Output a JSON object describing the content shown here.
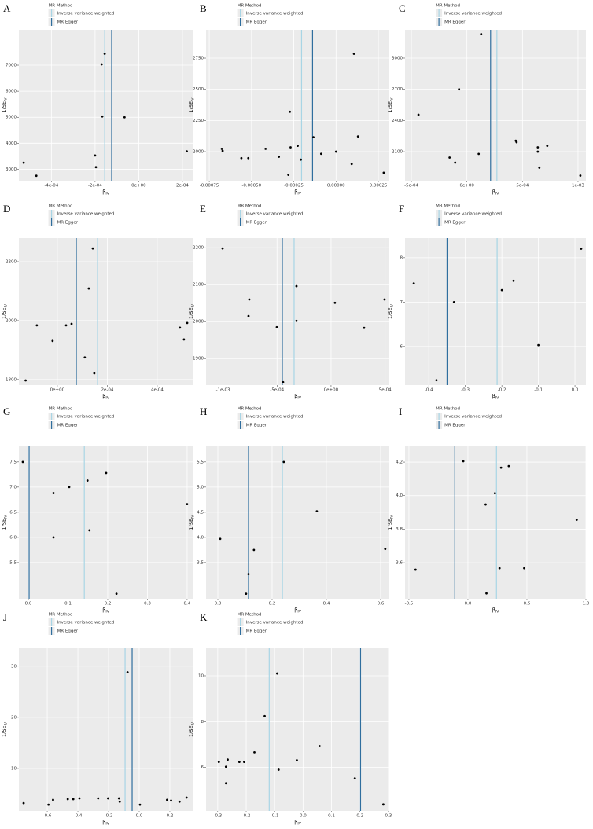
{
  "chart_data": [
    {
      "type": "scatter",
      "panel": "A",
      "legend_title": "MR Method",
      "xlabel": "β",
      "xlabel_sub": "IV",
      "ylabel": "1/SE",
      "ylabel_sub": "IV",
      "point_color": "#000000",
      "grid": true,
      "x": [
        -0.000527,
        -0.000469,
        -0.0002,
        -0.000196,
        -0.00017,
        -0.000156,
        -0.000167,
        -6.5e-05,
        0.00022
      ],
      "y": [
        3250,
        2750,
        3530,
        3080,
        7030,
        7440,
        5030,
        5000,
        3690
      ],
      "lines": [
        {
          "name": "Inverse variance weighted",
          "color": "#a8d5e5",
          "value": -0.000156
        },
        {
          "name": "MR Egger",
          "color": "#2f6e9e",
          "value": -0.000124
        }
      ],
      "xlim": [
        -0.000549,
        0.000247
      ],
      "ylim": [
        2560,
        8360
      ],
      "xticks": [
        {
          "value": -0.0004,
          "label": "-4e-04"
        },
        {
          "value": -0.0002,
          "label": "-2e-04"
        },
        {
          "value": 0,
          "label": "0e+00"
        },
        {
          "value": 0.0002,
          "label": "2e-04"
        }
      ],
      "yticks": [
        3000,
        4000,
        5000,
        6000,
        7000
      ]
    },
    {
      "type": "scatter",
      "panel": "B",
      "legend_title": "MR Method",
      "xlabel": "β",
      "xlabel_sub": "IV",
      "ylabel": "1/SE",
      "ylabel_sub": "IV",
      "point_color": "#000000",
      "grid": true,
      "x": [
        -0.000676,
        -0.000671,
        -0.00056,
        -0.000519,
        -0.000417,
        -0.000338,
        -0.000273,
        -0.000269,
        -0.000282,
        -0.000227,
        -0.000208,
        -0.000134,
        -8.8e-05,
        0,
        9.26e-05,
        0.000106,
        0.00013,
        0.000282
      ],
      "y": [
        2023,
        2006,
        1948,
        1948,
        2023,
        1959,
        2320,
        2035,
        1814,
        2047,
        1936,
        2116,
        1983,
        2000,
        1901,
        2785,
        2122,
        1831
      ],
      "lines": [
        {
          "name": "Inverse variance weighted",
          "color": "#a8d5e5",
          "value": -0.000204
        },
        {
          "name": "MR Egger",
          "color": "#2f6e9e",
          "value": -0.000139
        }
      ],
      "xlim": [
        -0.000769,
        0.000315
      ],
      "ylim": [
        1767,
        2977
      ],
      "xticks": [
        -0.00075,
        {
          "value": -0.0005,
          "label": "-0.00050"
        },
        -0.00025,
        {
          "value": 0,
          "label": "0.00000"
        },
        0.00025
      ],
      "yticks": [
        2000,
        2250,
        2500,
        2750
      ]
    },
    {
      "type": "scatter",
      "panel": "C",
      "legend_title": "MR Method",
      "xlabel": "β",
      "xlabel_sub": "IV",
      "ylabel": "1/SE",
      "ylabel_sub": "IV",
      "point_color": "#000000",
      "grid": true,
      "x": [
        -0.000436,
        -0.000156,
        -0.000106,
        -7.1e-05,
        0.000106,
        0.000128,
        0.00044,
        0.000447,
        0.000638,
        0.000638,
        0.000723,
        0.000652,
        0.001021
      ],
      "y": [
        2456,
        2044,
        1995,
        2700,
        2079,
        3230,
        2205,
        2191,
        2142,
        2100,
        2156,
        1947,
        1870
      ],
      "lines": [
        {
          "name": "Inverse variance weighted",
          "color": "#a8d5e5",
          "value": 0.00027
        },
        {
          "name": "MR Egger",
          "color": "#2f6e9e",
          "value": 0.000213
        }
      ],
      "xlim": [
        -0.000557,
        0.001071
      ],
      "ylim": [
        1821,
        3272
      ],
      "xticks": [
        {
          "value": -0.0005,
          "label": "-5e-04"
        },
        {
          "value": 0,
          "label": "0e+00"
        },
        {
          "value": 0.0005,
          "label": "5e-04"
        },
        {
          "value": 0.001,
          "label": "1e-03"
        }
      ],
      "yticks": [
        2100,
        2400,
        2700,
        3000
      ]
    },
    {
      "type": "scatter",
      "panel": "D",
      "legend_title": "MR Method",
      "xlabel": "β",
      "xlabel_sub": "IV",
      "ylabel": "1/SE",
      "ylabel_sub": "IV",
      "point_color": "#000000",
      "grid": true,
      "x": [
        -0.000127,
        -8.2e-05,
        -1.9e-05,
        3.5e-05,
        5.7e-05,
        0.00011,
        0.000126,
        0.000142,
        0.000148,
        0.000491,
        0.000507,
        0.00052
      ],
      "y": [
        1797,
        1984,
        1931,
        1984,
        1989,
        1875,
        2109,
        2245,
        1821,
        1976,
        1936,
        1992
      ],
      "lines": [
        {
          "name": "Inverse variance weighted",
          "color": "#a8d5e5",
          "value": 0.000161
        },
        {
          "name": "MR Egger",
          "color": "#2f6e9e",
          "value": 7.6e-05
        }
      ],
      "xlim": [
        -0.000154,
        0.000542
      ],
      "ylim": [
        1781,
        2280
      ],
      "xticks": [
        {
          "value": 0,
          "label": "0e+00"
        },
        {
          "value": 0.0002,
          "label": "2e-04"
        },
        {
          "value": 0.0004,
          "label": "4e-04"
        }
      ],
      "yticks": [
        1800,
        2000,
        2200
      ]
    },
    {
      "type": "scatter",
      "panel": "E",
      "legend_title": "MR Method",
      "xlabel": "β",
      "xlabel_sub": "IV",
      "ylabel": "1/SE",
      "ylabel_sub": "IV",
      "point_color": "#000000",
      "grid": true,
      "x": [
        -0.001004,
        -0.000757,
        -0.000764,
        -0.000502,
        -0.000444,
        -0.00032,
        -0.00032,
        3.6e-05,
        0.000306,
        0.000495
      ],
      "y": [
        2198,
        2060,
        2015,
        1985,
        1836,
        2096,
        2002,
        2051,
        1983,
        2060
      ],
      "lines": [
        {
          "name": "Inverse variance weighted",
          "color": "#a8d5e5",
          "value": -0.000342
        },
        {
          "name": "MR Egger",
          "color": "#2f6e9e",
          "value": -0.000451
        }
      ],
      "xlim": [
        -0.001157,
        0.000539
      ],
      "ylim": [
        1828,
        2226
      ],
      "xticks": [
        {
          "value": -0.001,
          "label": "-1e-03"
        },
        {
          "value": -0.0005,
          "label": "-5e-04"
        },
        {
          "value": 0,
          "label": "0e+00"
        },
        {
          "value": 0.0005,
          "label": "5e-04"
        }
      ],
      "yticks": [
        1900,
        2000,
        2100,
        2200
      ]
    },
    {
      "type": "scatter",
      "panel": "F",
      "legend_title": "MR Method",
      "xlabel": "β",
      "xlabel_sub": "IV",
      "ylabel": "1/SE",
      "ylabel_sub": "IV",
      "point_color": "#000000",
      "grid": true,
      "x": [
        -0.441,
        -0.379,
        -0.331,
        -0.2,
        -0.168,
        -0.1,
        0.017
      ],
      "y": [
        7.42,
        5.24,
        7.0,
        7.27,
        7.48,
        6.03,
        8.2
      ],
      "lines": [
        {
          "name": "Inverse variance weighted",
          "color": "#a8d5e5",
          "value": -0.213
        },
        {
          "name": "MR Egger",
          "color": "#2f6e9e",
          "value": -0.35
        }
      ],
      "xlim": [
        -0.465,
        0.03
      ],
      "ylim": [
        5.13,
        8.44
      ],
      "xticks": [
        -0.4,
        -0.3,
        -0.2,
        -0.1,
        {
          "value": 0,
          "label": "0.0"
        }
      ],
      "yticks": [
        6,
        7,
        8
      ]
    },
    {
      "type": "scatter",
      "panel": "G",
      "legend_title": "MR Method",
      "xlabel": "β",
      "xlabel_sub": "IV",
      "ylabel": "1/SE",
      "ylabel_sub": "IV",
      "point_color": "#000000",
      "grid": true,
      "x": [
        -0.0139,
        0.0634,
        0.0634,
        0.103,
        0.149,
        0.154,
        0.196,
        0.222,
        0.4
      ],
      "y": [
        7.5,
        6.88,
        6.0,
        7.0,
        7.13,
        6.14,
        7.28,
        4.88,
        6.66
      ],
      "lines": [
        {
          "name": "Inverse variance weighted",
          "color": "#a8d5e5",
          "value": 0.141
        },
        {
          "name": "MR Egger",
          "color": "#2f6e9e",
          "value": 0.002
        }
      ],
      "xlim": [
        -0.0238,
        0.414
      ],
      "ylim": [
        4.78,
        7.81
      ],
      "xticks": [
        {
          "value": 0,
          "label": "0.0"
        },
        0.1,
        0.2,
        0.3,
        0.4
      ],
      "yticks": [
        5.5,
        {
          "value": 6,
          "label": "6.0"
        },
        6.5,
        {
          "value": 7,
          "label": "7.0"
        },
        7.5
      ]
    },
    {
      "type": "scatter",
      "panel": "H",
      "legend_title": "MR Method",
      "xlabel": "β",
      "xlabel_sub": "IV",
      "ylabel": "1/SE",
      "ylabel_sub": "IV",
      "point_color": "#000000",
      "grid": true,
      "x": [
        0.0087,
        0.104,
        0.113,
        0.133,
        0.243,
        0.365,
        0.617
      ],
      "y": [
        3.97,
        2.88,
        3.27,
        3.75,
        5.5,
        4.52,
        3.77
      ],
      "lines": [
        {
          "name": "Inverse variance weighted",
          "color": "#a8d5e5",
          "value": 0.238
        },
        {
          "name": "MR Egger",
          "color": "#2f6e9e",
          "value": 0.113
        }
      ],
      "xlim": [
        -0.0435,
        0.632
      ],
      "ylim": [
        2.78,
        5.81
      ],
      "xticks": [
        {
          "value": 0,
          "label": "0.0"
        },
        0.2,
        0.4,
        0.6
      ],
      "yticks": [
        3.5,
        {
          "value": 4,
          "label": "4.0"
        },
        4.5,
        {
          "value": 5,
          "label": "5.0"
        },
        5.5
      ]
    },
    {
      "type": "scatter",
      "panel": "I",
      "legend_title": "MR Method",
      "xlabel": "β",
      "xlabel_sub": "IV",
      "ylabel": "1/SE",
      "ylabel_sub": "IV",
      "point_color": "#000000",
      "grid": true,
      "x": [
        -0.444,
        -0.039,
        0.15,
        0.157,
        0.229,
        0.268,
        0.281,
        0.346,
        0.477,
        0.922
      ],
      "y": [
        3.558,
        4.205,
        3.947,
        3.417,
        4.014,
        3.567,
        4.167,
        4.176,
        3.567,
        3.856
      ],
      "lines": [
        {
          "name": "Inverse variance weighted",
          "color": "#a8d5e5",
          "value": 0.242
        },
        {
          "name": "MR Egger",
          "color": "#2f6e9e",
          "value": -0.111
        }
      ],
      "xlim": [
        -0.533,
        1.0
      ],
      "ylim": [
        3.385,
        4.294
      ],
      "xticks": [
        -0.5,
        {
          "value": 0,
          "label": "0.0"
        },
        0.5,
        {
          "value": 1,
          "label": "1.0"
        }
      ],
      "yticks": [
        3.6,
        3.8,
        {
          "value": 4,
          "label": "4.0"
        },
        4.2
      ]
    },
    {
      "type": "scatter",
      "panel": "J",
      "legend_title": "MR Method",
      "xlabel": "β",
      "xlabel_sub": "IV",
      "ylabel": "1/SE",
      "ylabel_sub": "IV",
      "point_color": "#000000",
      "grid": true,
      "x": [
        -0.754,
        -0.592,
        -0.562,
        -0.466,
        -0.43,
        -0.39,
        -0.268,
        -0.203,
        -0.132,
        -0.127,
        -0.076,
        0.005,
        0.182,
        0.208,
        0.263,
        0.309
      ],
      "y": [
        3.2,
        2.9,
        3.85,
        4.0,
        4.0,
        4.15,
        4.15,
        4.15,
        4.15,
        3.5,
        28.8,
        2.9,
        3.85,
        3.7,
        3.5,
        4.3
      ],
      "lines": [
        {
          "name": "Inverse variance weighted",
          "color": "#a8d5e5",
          "value": -0.092
        },
        {
          "name": "MR Egger",
          "color": "#2f6e9e",
          "value": -0.046
        }
      ],
      "xlim": [
        -0.785,
        0.349
      ],
      "ylim": [
        1.69,
        33.5
      ],
      "xticks": [
        -0.6,
        -0.4,
        -0.2,
        {
          "value": 0,
          "label": "0.0"
        },
        0.2
      ],
      "yticks": [
        10,
        20,
        30
      ]
    },
    {
      "type": "scatter",
      "panel": "K",
      "legend_title": "MR Method",
      "xlabel": "β",
      "xlabel_sub": "IV",
      "ylabel": "1/SE",
      "ylabel_sub": "IV",
      "point_color": "#000000",
      "grid": true,
      "x": [
        -0.296,
        -0.271,
        -0.265,
        -0.224,
        -0.207,
        -0.171,
        -0.135,
        -0.091,
        -0.086,
        -0.022,
        0.058,
        0.182,
        0.282,
        -0.271
      ],
      "y": [
        6.24,
        6.03,
        6.34,
        6.24,
        6.24,
        6.66,
        8.24,
        10.1,
        5.9,
        6.31,
        6.93,
        5.52,
        4.38,
        5.31
      ],
      "lines": [
        {
          "name": "Inverse variance weighted",
          "color": "#a8d5e5",
          "value": -0.119
        },
        {
          "name": "MR Egger",
          "color": "#2f6e9e",
          "value": 0.202
        }
      ],
      "xlim": [
        -0.341,
        0.303
      ],
      "ylim": [
        4.1,
        11.2
      ],
      "xticks": [
        -0.3,
        -0.2,
        -0.1,
        {
          "value": 0,
          "label": "0.0"
        },
        0.1,
        0.2,
        0.3
      ],
      "yticks": [
        6,
        8,
        10
      ]
    }
  ]
}
